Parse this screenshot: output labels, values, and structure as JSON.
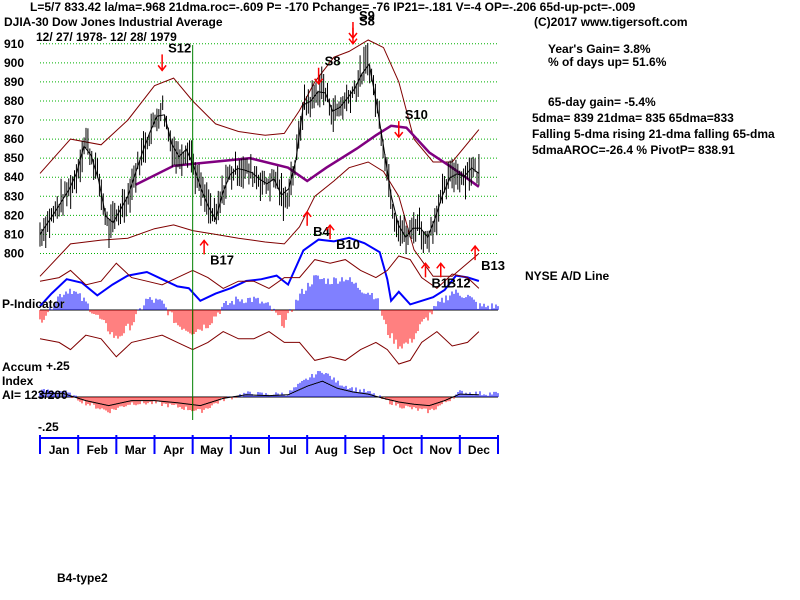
{
  "header": {
    "stats_line": "L=5/7  833.42  la/ma=.968 21dma.roc=-.609 P= -170 Pchange= -76 IP21=-.181 V=-4 OP=-.206 65d-up-pct=-.009",
    "index_line": "DJIA-30  Dow Jones Industrial Average",
    "date_range": "12/ 27/ 1978- 12/ 28/ 1979",
    "copyright": "(C)2017 www.tigersoft.com"
  },
  "summary": {
    "years_gain": "Year's Gain= 3.8%",
    "days_up": "% of days up= 51.6%",
    "gain_65day": "65-day gain= -5.4%",
    "dma_line": "5dma= 839 21dma= 835 65dma=833",
    "trend_line": "Falling 5-dma  rising 21-dma  falling 65-dma",
    "aroc_line": "5dmaAROC=-26.4 %  PivotP= 838.91"
  },
  "panel_labels": {
    "nyse_ad": "NYSE A/D Line",
    "p_indicator": "P-Indicator",
    "accum_1": "Accum",
    "accum_2": "Index",
    "ai": "AI= 123/200",
    "footer": "B4-type2"
  },
  "signals": [
    {
      "label": "S12",
      "kind": "sell"
    },
    {
      "label": "S8",
      "kind": "sell"
    },
    {
      "label": "S9",
      "kind": "sell"
    },
    {
      "label": "S8",
      "kind": "sell"
    },
    {
      "label": "S10",
      "kind": "sell"
    },
    {
      "label": "B17",
      "kind": "buy"
    },
    {
      "label": "B4",
      "kind": "buy"
    },
    {
      "label": "B10",
      "kind": "buy"
    },
    {
      "label": "B1",
      "kind": "buy"
    },
    {
      "label": "B12",
      "kind": "buy"
    },
    {
      "label": "B13",
      "kind": "buy"
    }
  ],
  "colors": {
    "grid": "#00b000",
    "price": "#000000",
    "band": "#800000",
    "ma65": "#800080",
    "ad_line": "#0000ff",
    "positive": "#0000ff",
    "negative": "#ff0000",
    "marker_line": "#008000"
  },
  "chart_data": {
    "type": "line",
    "title": "DJIA-30  Dow Jones Industrial Average",
    "x_tick_labels": [
      "Jan",
      "Feb",
      "Mar",
      "Apr",
      "May",
      "Jun",
      "Jul",
      "Aug",
      "Sep",
      "Oct",
      "Nov",
      "Dec"
    ],
    "y_ticks": [
      800,
      810,
      820,
      830,
      840,
      850,
      860,
      870,
      880,
      890,
      900,
      910
    ],
    "ylim": [
      795,
      912
    ],
    "accum_ticks": [
      "+.25",
      "-.25"
    ],
    "series": [
      {
        "name": "DJIA close (approx)",
        "points": [
          [
            0,
            810
          ],
          [
            0.4,
            822
          ],
          [
            0.9,
            838
          ],
          [
            1.2,
            860
          ],
          [
            1.5,
            842
          ],
          [
            1.8,
            812
          ],
          [
            2.3,
            830
          ],
          [
            2.8,
            860
          ],
          [
            3.2,
            878
          ],
          [
            3.4,
            860
          ],
          [
            3.6,
            850
          ],
          [
            3.9,
            856
          ],
          [
            4.1,
            840
          ],
          [
            4.4,
            825
          ],
          [
            4.6,
            818
          ],
          [
            4.9,
            840
          ],
          [
            5.2,
            845
          ],
          [
            5.6,
            842
          ],
          [
            5.9,
            836
          ],
          [
            6.2,
            840
          ],
          [
            6.4,
            825
          ],
          [
            6.7,
            848
          ],
          [
            6.9,
            878
          ],
          [
            7.1,
            880
          ],
          [
            7.4,
            888
          ],
          [
            7.7,
            873
          ],
          [
            8.0,
            880
          ],
          [
            8.3,
            888
          ],
          [
            8.6,
            902
          ],
          [
            8.9,
            870
          ],
          [
            9.1,
            843
          ],
          [
            9.3,
            818
          ],
          [
            9.6,
            808
          ],
          [
            9.9,
            817
          ],
          [
            10.1,
            806
          ],
          [
            10.3,
            815
          ],
          [
            10.5,
            828
          ],
          [
            10.8,
            843
          ],
          [
            11.1,
            840
          ],
          [
            11.3,
            845
          ],
          [
            11.5,
            842
          ]
        ]
      },
      {
        "name": "65-dma",
        "points": [
          [
            2.5,
            836
          ],
          [
            3.5,
            846
          ],
          [
            4.5,
            848
          ],
          [
            5.5,
            850
          ],
          [
            6.5,
            845
          ],
          [
            7.0,
            838
          ],
          [
            7.5,
            845
          ],
          [
            8.3,
            855
          ],
          [
            8.8,
            862
          ],
          [
            9.2,
            867
          ],
          [
            9.6,
            866
          ],
          [
            10.2,
            853
          ],
          [
            10.8,
            845
          ],
          [
            11.5,
            835
          ]
        ]
      },
      {
        "name": "Upper band",
        "points": [
          [
            0,
            842
          ],
          [
            0.8,
            860
          ],
          [
            1.6,
            857
          ],
          [
            2.3,
            870
          ],
          [
            3.0,
            888
          ],
          [
            3.5,
            892
          ],
          [
            4.0,
            880
          ],
          [
            4.6,
            868
          ],
          [
            5.2,
            864
          ],
          [
            5.9,
            862
          ],
          [
            6.4,
            863
          ],
          [
            6.8,
            875
          ],
          [
            7.2,
            890
          ],
          [
            7.7,
            903
          ],
          [
            8.1,
            906
          ],
          [
            8.6,
            912
          ],
          [
            9.0,
            908
          ],
          [
            9.4,
            890
          ],
          [
            9.8,
            860
          ],
          [
            10.3,
            848
          ],
          [
            10.8,
            848
          ],
          [
            11.5,
            865
          ]
        ]
      },
      {
        "name": "Lower band",
        "points": [
          [
            0,
            788
          ],
          [
            0.8,
            805
          ],
          [
            1.6,
            807
          ],
          [
            2.3,
            808
          ],
          [
            3.0,
            813
          ],
          [
            3.5,
            815
          ],
          [
            4.0,
            812
          ],
          [
            4.6,
            810
          ],
          [
            5.2,
            808
          ],
          [
            5.9,
            806
          ],
          [
            6.4,
            805
          ],
          [
            6.8,
            814
          ],
          [
            7.2,
            830
          ],
          [
            7.7,
            838
          ],
          [
            8.1,
            845
          ],
          [
            8.6,
            848
          ],
          [
            9.0,
            843
          ],
          [
            9.4,
            830
          ],
          [
            9.8,
            802
          ],
          [
            10.3,
            788
          ],
          [
            10.8,
            788
          ],
          [
            11.5,
            800
          ]
        ]
      },
      {
        "name": "NYSE A/D Line",
        "points": [
          [
            0,
            -0.9
          ],
          [
            0.3,
            -0.2
          ],
          [
            0.7,
            0.6
          ],
          [
            1.1,
            0.4
          ],
          [
            1.5,
            -0.3
          ],
          [
            1.9,
            0.3
          ],
          [
            2.3,
            0.8
          ],
          [
            2.8,
            1.0
          ],
          [
            3.2,
            0.6
          ],
          [
            3.6,
            0.2
          ],
          [
            3.9,
            0.1
          ],
          [
            4.2,
            -0.6
          ],
          [
            4.6,
            -0.2
          ],
          [
            5.0,
            0.1
          ],
          [
            5.4,
            0.5
          ],
          [
            5.8,
            0.6
          ],
          [
            6.2,
            0.8
          ],
          [
            6.5,
            0.3
          ],
          [
            6.9,
            2.2
          ],
          [
            7.3,
            2.8
          ],
          [
            7.7,
            2.7
          ],
          [
            8.1,
            2.9
          ],
          [
            8.5,
            2.6
          ],
          [
            8.9,
            2.1
          ],
          [
            9.1,
            0.6
          ],
          [
            9.2,
            -0.6
          ],
          [
            9.4,
            -0.1
          ],
          [
            9.7,
            -0.8
          ],
          [
            10.0,
            -0.6
          ],
          [
            10.3,
            -0.4
          ],
          [
            10.6,
            0.0
          ],
          [
            10.9,
            0.8
          ],
          [
            11.2,
            0.7
          ],
          [
            11.5,
            0.5
          ]
        ]
      },
      {
        "name": "P-Indicator",
        "points": [
          [
            0,
            -0.3
          ],
          [
            0.5,
            0.4
          ],
          [
            0.8,
            0.6
          ],
          [
            1.2,
            0.2
          ],
          [
            1.6,
            -0.3
          ],
          [
            2.0,
            -0.8
          ],
          [
            2.4,
            -0.4
          ],
          [
            2.8,
            0.3
          ],
          [
            3.2,
            0.2
          ],
          [
            3.6,
            -0.4
          ],
          [
            4.0,
            -0.6
          ],
          [
            4.4,
            -0.4
          ],
          [
            4.8,
            0.1
          ],
          [
            5.2,
            0.3
          ],
          [
            5.6,
            0.3
          ],
          [
            6.0,
            0.1
          ],
          [
            6.4,
            -0.4
          ],
          [
            6.8,
            0.4
          ],
          [
            7.2,
            0.9
          ],
          [
            7.6,
            0.8
          ],
          [
            8.0,
            0.9
          ],
          [
            8.4,
            0.6
          ],
          [
            8.8,
            0.4
          ],
          [
            9.1,
            -0.6
          ],
          [
            9.4,
            -1.0
          ],
          [
            9.7,
            -0.9
          ],
          [
            10.0,
            -0.4
          ],
          [
            10.4,
            0.1
          ],
          [
            10.8,
            0.5
          ],
          [
            11.2,
            0.4
          ],
          [
            11.5,
            0.1
          ]
        ]
      },
      {
        "name": "Accumulation Index",
        "points": [
          [
            0,
            0.05
          ],
          [
            0.6,
            0.05
          ],
          [
            1.2,
            -0.05
          ],
          [
            1.8,
            -0.12
          ],
          [
            2.4,
            -0.05
          ],
          [
            3.0,
            -0.05
          ],
          [
            3.6,
            -0.08
          ],
          [
            4.2,
            -0.12
          ],
          [
            4.8,
            -0.02
          ],
          [
            5.4,
            0.03
          ],
          [
            6.0,
            0.02
          ],
          [
            6.5,
            0.03
          ],
          [
            7.0,
            0.15
          ],
          [
            7.4,
            0.22
          ],
          [
            7.8,
            0.12
          ],
          [
            8.2,
            0.07
          ],
          [
            8.6,
            0.04
          ],
          [
            9.0,
            -0.02
          ],
          [
            9.4,
            -0.07
          ],
          [
            9.8,
            -0.1
          ],
          [
            10.2,
            -0.12
          ],
          [
            10.6,
            -0.05
          ],
          [
            11.0,
            0.04
          ],
          [
            11.5,
            0.03
          ]
        ]
      }
    ],
    "signal_positions": [
      {
        "label": "S12",
        "x": 3.2,
        "y": 895
      },
      {
        "label": "S8",
        "x": 7.3,
        "y": 888
      },
      {
        "label": "S9",
        "x": 8.2,
        "y": 912
      },
      {
        "label": "S8",
        "x": 8.2,
        "y": 909
      },
      {
        "label": "S10",
        "x": 9.4,
        "y": 860
      },
      {
        "label": "B17",
        "x": 4.3,
        "y": 810
      },
      {
        "label": "B4",
        "x": 7.0,
        "y": 825
      },
      {
        "label": "B10",
        "x": 7.6,
        "y": 818
      },
      {
        "label": "B1",
        "x": 10.1,
        "y": 798
      },
      {
        "label": "B12",
        "x": 10.5,
        "y": 798
      },
      {
        "label": "B13",
        "x": 11.4,
        "y": 807
      }
    ]
  }
}
